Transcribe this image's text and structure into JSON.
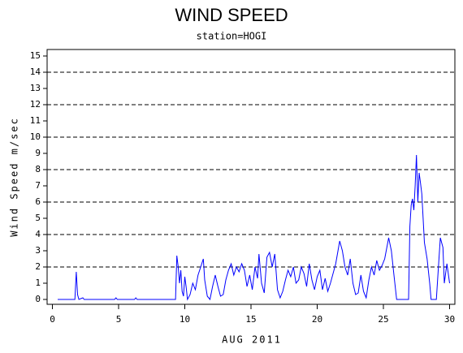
{
  "chart_data": {
    "type": "line",
    "title": "WIND SPEED",
    "subtitle": "station=HOGI",
    "xlabel": "AUG 2011",
    "ylabel": "Wind Speed m/sec",
    "xlim": [
      -0.4,
      30.4
    ],
    "xticks": [
      0,
      5,
      10,
      15,
      20,
      25,
      30
    ],
    "ylim": [
      -0.3,
      15.4
    ],
    "yticks": [
      0,
      1,
      2,
      3,
      4,
      5,
      6,
      7,
      8,
      9,
      10,
      11,
      12,
      13,
      14,
      15
    ],
    "ygrid": [
      2,
      4,
      6,
      8,
      10,
      12,
      14
    ],
    "grid": true,
    "series": [
      {
        "name": "Wind Speed",
        "color": "#0000ff",
        "x": [
          0.4,
          1.7,
          1.8,
          1.9,
          2.0,
          2.3,
          2.4,
          4.7,
          4.8,
          4.9,
          6.2,
          6.3,
          6.4,
          9.3,
          9.4,
          9.5,
          9.6,
          9.7,
          9.8,
          9.9,
          10.0,
          10.1,
          10.2,
          10.4,
          10.6,
          10.8,
          11.0,
          11.2,
          11.4,
          11.5,
          11.7,
          11.9,
          12.1,
          12.3,
          12.5,
          12.7,
          12.9,
          13.1,
          13.3,
          13.5,
          13.7,
          13.9,
          14.1,
          14.3,
          14.5,
          14.7,
          14.9,
          15.1,
          15.3,
          15.5,
          15.6,
          15.8,
          16.0,
          16.2,
          16.4,
          16.6,
          16.8,
          17.0,
          17.2,
          17.4,
          17.6,
          17.8,
          18.0,
          18.2,
          18.4,
          18.6,
          18.8,
          19.0,
          19.2,
          19.4,
          19.6,
          19.8,
          20.0,
          20.2,
          20.4,
          20.6,
          20.8,
          21.0,
          21.4,
          21.7,
          21.9,
          22.1,
          22.3,
          22.5,
          22.7,
          22.9,
          23.1,
          23.3,
          23.5,
          23.7,
          23.9,
          24.1,
          24.3,
          24.5,
          24.7,
          24.9,
          25.1,
          25.4,
          25.6,
          25.8,
          26.0,
          26.9,
          27.0,
          27.1,
          27.2,
          27.3,
          27.4,
          27.5,
          27.6,
          27.7,
          27.8,
          27.9,
          28.0,
          28.1,
          28.3,
          28.5,
          28.6,
          29.0,
          29.2,
          29.3,
          29.5,
          29.6,
          29.8,
          30.0
        ],
        "values": [
          0,
          0,
          1.7,
          0.3,
          0,
          0.1,
          0,
          0,
          0.1,
          0,
          0,
          0.1,
          0,
          0,
          2.7,
          2.0,
          1.0,
          1.8,
          0.5,
          0.2,
          1.4,
          0.8,
          0,
          0.3,
          1.0,
          0.6,
          1.5,
          2.0,
          2.5,
          1.2,
          0.2,
          0,
          0.8,
          1.5,
          0.8,
          0.2,
          0.3,
          1.2,
          1.8,
          2.2,
          1.5,
          2.0,
          1.7,
          2.2,
          1.8,
          0.8,
          1.5,
          0.6,
          2.0,
          1.3,
          2.8,
          1.0,
          0.4,
          2.6,
          2.9,
          2.0,
          2.8,
          0.6,
          0.1,
          0.5,
          1.2,
          1.8,
          1.4,
          2.0,
          1.0,
          1.2,
          2.0,
          1.6,
          0.8,
          2.2,
          1.2,
          0.6,
          1.4,
          1.8,
          0.6,
          1.3,
          0.5,
          1.0,
          2.2,
          3.6,
          3.0,
          2.0,
          1.5,
          2.5,
          1.0,
          0.3,
          0.4,
          1.5,
          0.5,
          0.1,
          1.2,
          2.0,
          1.5,
          2.4,
          1.8,
          2.1,
          2.5,
          3.8,
          3.0,
          1.5,
          0,
          0,
          4.5,
          5.8,
          6.2,
          5.5,
          7.0,
          8.9,
          6.0,
          7.8,
          7.2,
          6.5,
          5.0,
          3.5,
          2.5,
          1.0,
          0,
          0,
          2.5,
          3.8,
          3.2,
          1.0,
          2.2,
          1.0
        ]
      }
    ]
  }
}
